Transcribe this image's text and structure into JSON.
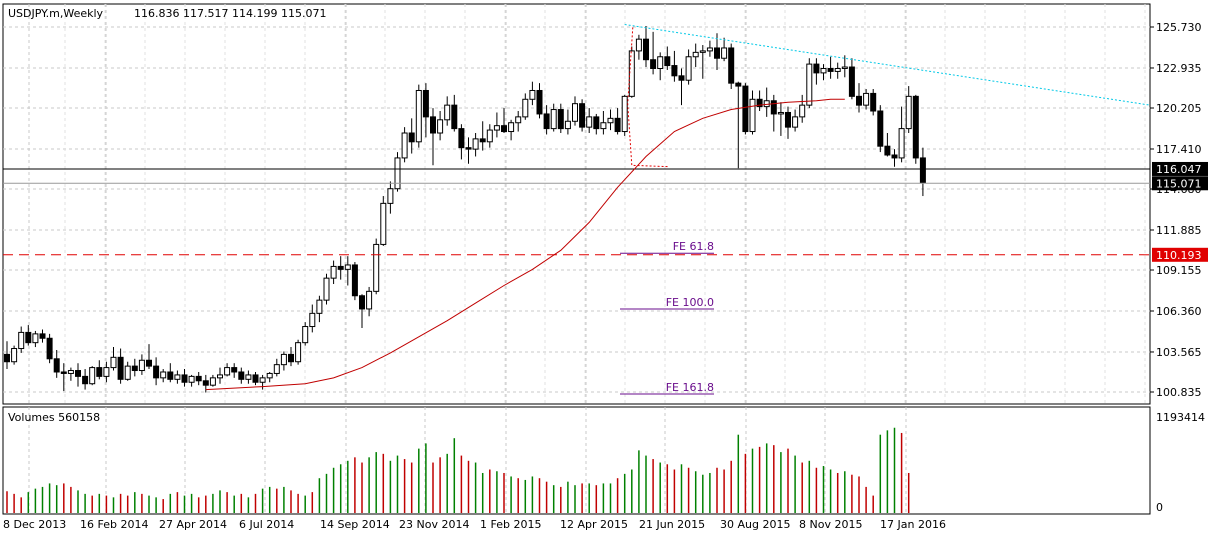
{
  "header": {
    "symbol": "USDJPY.m,Weekly",
    "ohlc": "116.836 117.517 114.199 115.071"
  },
  "volume_panel": {
    "label": "Volumes 560158",
    "axis_max_label": "1193414",
    "axis_zero_label": "0"
  },
  "colors": {
    "background": "#ffffff",
    "grid": "#c8c8c8",
    "candle": "#000000",
    "ma": "#c00000",
    "trendline": "#00c8e6",
    "support_line": "#000000",
    "fe_line": "#6a0d8c",
    "target_line": "#e00000",
    "target_label_bg": "#e00000",
    "volume_up": "#008000",
    "volume_down": "#c00000"
  },
  "chart_data": {
    "type": "candlestick",
    "title": "USDJPY.m,Weekly",
    "y_ticks": [
      "125.730",
      "122.935",
      "120.205",
      "117.410",
      "114.680",
      "111.885",
      "109.155",
      "106.360",
      "103.565",
      "100.835"
    ],
    "y_range": [
      99.9,
      127.0
    ],
    "x_tick_labels": [
      "8 Dec 2013",
      "16 Feb 2014",
      "27 Apr 2014",
      "6 Jul 2014",
      "14 Sep 2014",
      "23 Nov 2014",
      "1 Feb 2015",
      "12 Apr 2015",
      "21 Jun 2015",
      "30 Aug 2015",
      "8 Nov 2015",
      "17 Jan 2016"
    ],
    "current_price_labels": [
      "116.047",
      "115.071"
    ],
    "target_price_label": "110.193",
    "target_price": 110.193,
    "support_price": 116.047,
    "fe_levels": [
      {
        "label": "FE 61.8",
        "price": 110.3
      },
      {
        "label": "FE 100.0",
        "price": 106.5
      },
      {
        "label": "FE 161.8",
        "price": 100.7
      }
    ],
    "candles": [
      [
        103.4,
        104.3,
        102.4,
        102.9
      ],
      [
        102.9,
        104.0,
        102.7,
        103.8
      ],
      [
        103.8,
        105.3,
        103.5,
        104.9
      ],
      [
        104.9,
        105.4,
        104.0,
        104.2
      ],
      [
        104.2,
        105.0,
        103.9,
        104.8
      ],
      [
        104.8,
        105.1,
        104.2,
        104.5
      ],
      [
        104.5,
        104.8,
        102.8,
        103.1
      ],
      [
        103.1,
        103.7,
        101.8,
        102.2
      ],
      [
        102.2,
        102.8,
        100.9,
        102.1
      ],
      [
        102.1,
        102.5,
        101.6,
        102.3
      ],
      [
        102.3,
        102.8,
        101.2,
        101.9
      ],
      [
        101.9,
        102.4,
        101.0,
        101.4
      ],
      [
        101.4,
        102.6,
        101.3,
        102.5
      ],
      [
        102.5,
        103.0,
        101.7,
        101.9
      ],
      [
        101.9,
        102.9,
        101.5,
        102.5
      ],
      [
        102.5,
        103.9,
        102.3,
        103.2
      ],
      [
        103.2,
        103.8,
        101.4,
        101.7
      ],
      [
        101.7,
        102.9,
        101.6,
        102.6
      ],
      [
        102.6,
        103.1,
        101.9,
        102.3
      ],
      [
        102.3,
        103.4,
        102.0,
        103.0
      ],
      [
        103.0,
        104.1,
        102.4,
        102.6
      ],
      [
        102.6,
        103.2,
        101.3,
        101.8
      ],
      [
        101.8,
        102.4,
        101.5,
        102.2
      ],
      [
        102.2,
        102.8,
        101.5,
        101.7
      ],
      [
        101.7,
        102.3,
        101.4,
        102.0
      ],
      [
        102.0,
        102.4,
        101.2,
        101.5
      ],
      [
        101.5,
        102.0,
        101.2,
        101.9
      ],
      [
        101.9,
        102.2,
        101.3,
        101.6
      ],
      [
        101.6,
        102.0,
        100.8,
        101.3
      ],
      [
        101.3,
        102.0,
        101.2,
        101.8
      ],
      [
        101.8,
        102.5,
        101.4,
        102.0
      ],
      [
        102.0,
        102.8,
        101.9,
        102.5
      ],
      [
        102.5,
        102.8,
        101.8,
        102.2
      ],
      [
        102.2,
        102.5,
        101.4,
        101.7
      ],
      [
        101.7,
        102.3,
        101.4,
        102.0
      ],
      [
        102.0,
        102.2,
        101.3,
        101.5
      ],
      [
        101.5,
        102.0,
        101.0,
        101.8
      ],
      [
        101.8,
        102.2,
        101.5,
        102.1
      ],
      [
        102.1,
        103.1,
        101.9,
        102.7
      ],
      [
        102.7,
        103.6,
        102.3,
        103.4
      ],
      [
        103.4,
        103.9,
        102.6,
        102.9
      ],
      [
        102.9,
        104.4,
        102.7,
        104.2
      ],
      [
        104.2,
        105.6,
        104.0,
        105.3
      ],
      [
        105.3,
        106.8,
        104.9,
        106.2
      ],
      [
        106.2,
        107.4,
        105.6,
        107.1
      ],
      [
        107.1,
        108.9,
        106.8,
        108.6
      ],
      [
        108.6,
        109.8,
        108.2,
        109.4
      ],
      [
        109.4,
        110.1,
        108.5,
        109.2
      ],
      [
        109.2,
        110.1,
        108.1,
        109.5
      ],
      [
        109.5,
        109.7,
        107.1,
        107.4
      ],
      [
        107.4,
        107.5,
        105.2,
        106.5
      ],
      [
        106.5,
        108.0,
        106.0,
        107.7
      ],
      [
        107.7,
        111.3,
        107.5,
        110.9
      ],
      [
        110.9,
        114.2,
        110.8,
        113.7
      ],
      [
        113.7,
        115.2,
        113.0,
        114.7
      ],
      [
        114.7,
        117.2,
        114.5,
        116.8
      ],
      [
        116.8,
        118.9,
        116.5,
        118.5
      ],
      [
        118.5,
        119.5,
        117.1,
        117.9
      ],
      [
        117.9,
        121.8,
        117.5,
        121.4
      ],
      [
        121.4,
        121.9,
        118.2,
        119.6
      ],
      [
        119.6,
        120.2,
        116.3,
        118.5
      ],
      [
        118.5,
        120.0,
        118.0,
        119.4
      ],
      [
        119.4,
        121.0,
        119.0,
        120.4
      ],
      [
        120.4,
        121.1,
        118.6,
        118.8
      ],
      [
        118.8,
        119.1,
        116.7,
        117.5
      ],
      [
        117.5,
        118.2,
        116.4,
        117.4
      ],
      [
        117.4,
        118.5,
        116.9,
        118.1
      ],
      [
        118.1,
        119.3,
        117.3,
        117.9
      ],
      [
        117.9,
        119.1,
        117.5,
        118.7
      ],
      [
        118.7,
        119.9,
        118.2,
        119.0
      ],
      [
        119.0,
        120.2,
        118.5,
        118.6
      ],
      [
        118.6,
        119.4,
        118.0,
        119.2
      ],
      [
        119.2,
        120.0,
        118.6,
        119.6
      ],
      [
        119.6,
        121.2,
        119.4,
        120.8
      ],
      [
        120.8,
        122.0,
        120.4,
        121.4
      ],
      [
        121.4,
        121.9,
        119.5,
        119.8
      ],
      [
        119.8,
        120.4,
        118.4,
        118.8
      ],
      [
        118.8,
        120.5,
        118.6,
        120.1
      ],
      [
        120.1,
        120.5,
        118.5,
        118.8
      ],
      [
        118.8,
        120.1,
        118.4,
        119.3
      ],
      [
        119.3,
        121.0,
        119.0,
        120.5
      ],
      [
        120.5,
        120.8,
        118.6,
        118.9
      ],
      [
        118.9,
        120.2,
        118.5,
        119.6
      ],
      [
        119.6,
        119.8,
        118.4,
        118.8
      ],
      [
        118.8,
        120.0,
        118.4,
        119.2
      ],
      [
        119.2,
        120.1,
        118.7,
        119.5
      ],
      [
        119.5,
        120.2,
        118.4,
        118.6
      ],
      [
        118.6,
        121.1,
        118.3,
        121.0
      ],
      [
        121.0,
        124.4,
        120.9,
        124.1
      ],
      [
        124.1,
        125.2,
        123.5,
        124.9
      ],
      [
        124.9,
        125.8,
        123.0,
        123.5
      ],
      [
        123.5,
        125.4,
        122.5,
        122.9
      ],
      [
        122.9,
        124.0,
        122.1,
        123.7
      ],
      [
        123.7,
        124.4,
        122.8,
        123.1
      ],
      [
        123.1,
        124.1,
        122.0,
        122.4
      ],
      [
        122.4,
        122.9,
        120.4,
        122.1
      ],
      [
        122.1,
        124.2,
        121.8,
        123.7
      ],
      [
        123.7,
        124.6,
        123.0,
        124.0
      ],
      [
        124.0,
        124.5,
        122.2,
        124.1
      ],
      [
        124.1,
        124.8,
        123.7,
        124.3
      ],
      [
        124.3,
        125.3,
        122.8,
        123.6
      ],
      [
        123.6,
        125.0,
        123.4,
        124.3
      ],
      [
        124.3,
        124.6,
        121.5,
        121.9
      ],
      [
        121.9,
        122.0,
        116.1,
        121.7
      ],
      [
        121.7,
        121.9,
        118.4,
        118.6
      ],
      [
        118.6,
        121.4,
        118.4,
        120.8
      ],
      [
        120.8,
        121.4,
        120.0,
        120.3
      ],
      [
        120.3,
        121.6,
        119.6,
        120.7
      ],
      [
        120.7,
        121.1,
        118.6,
        119.8
      ],
      [
        119.8,
        120.6,
        118.3,
        119.9
      ],
      [
        119.9,
        120.3,
        118.1,
        118.9
      ],
      [
        118.9,
        120.1,
        118.6,
        119.6
      ],
      [
        119.6,
        121.1,
        119.2,
        120.4
      ],
      [
        120.4,
        123.6,
        120.2,
        123.2
      ],
      [
        123.2,
        123.6,
        121.8,
        122.6
      ],
      [
        122.6,
        123.2,
        122.1,
        122.9
      ],
      [
        122.9,
        123.7,
        122.2,
        122.7
      ],
      [
        122.7,
        123.3,
        122.2,
        122.9
      ],
      [
        122.9,
        123.8,
        122.3,
        123.0
      ],
      [
        123.0,
        123.6,
        120.8,
        121.0
      ],
      [
        121.0,
        121.9,
        119.9,
        120.4
      ],
      [
        120.4,
        121.5,
        120.1,
        121.2
      ],
      [
        121.2,
        121.5,
        119.7,
        120.0
      ],
      [
        120.0,
        120.4,
        117.2,
        117.6
      ],
      [
        117.6,
        118.5,
        116.9,
        117.0
      ],
      [
        117.0,
        117.4,
        116.2,
        116.8
      ],
      [
        116.8,
        120.3,
        116.5,
        118.8
      ],
      [
        118.8,
        121.7,
        118.5,
        121.0
      ],
      [
        121.0,
        121.1,
        116.4,
        116.8
      ],
      [
        116.8,
        117.5,
        114.2,
        115.1
      ]
    ],
    "ma": [
      [
        0,
        101.0
      ],
      [
        8,
        101.2
      ],
      [
        14,
        101.4
      ],
      [
        18,
        101.8
      ],
      [
        22,
        102.5
      ],
      [
        26,
        103.5
      ],
      [
        30,
        104.6
      ],
      [
        34,
        105.7
      ],
      [
        38,
        106.9
      ],
      [
        42,
        108.1
      ],
      [
        46,
        109.2
      ],
      [
        50,
        110.5
      ],
      [
        54,
        112.4
      ],
      [
        58,
        114.8
      ],
      [
        62,
        116.9
      ],
      [
        66,
        118.6
      ],
      [
        70,
        119.5
      ],
      [
        74,
        120.1
      ],
      [
        78,
        120.4
      ],
      [
        82,
        120.6
      ],
      [
        86,
        120.7
      ],
      [
        88,
        120.8
      ],
      [
        90,
        120.8
      ]
    ],
    "ma_start_index": 28,
    "volumes": [
      [
        0.25,
        -1
      ],
      [
        0.22,
        -1
      ],
      [
        0.18,
        -1
      ],
      [
        0.24,
        1
      ],
      [
        0.28,
        1
      ],
      [
        0.3,
        1
      ],
      [
        0.34,
        1
      ],
      [
        0.32,
        1
      ],
      [
        0.34,
        -1
      ],
      [
        0.3,
        -1
      ],
      [
        0.26,
        1
      ],
      [
        0.22,
        1
      ],
      [
        0.2,
        -1
      ],
      [
        0.22,
        1
      ],
      [
        0.2,
        -1
      ],
      [
        0.18,
        1
      ],
      [
        0.22,
        -1
      ],
      [
        0.2,
        -1
      ],
      [
        0.24,
        1
      ],
      [
        0.22,
        -1
      ],
      [
        0.2,
        1
      ],
      [
        0.18,
        1
      ],
      [
        0.16,
        -1
      ],
      [
        0.22,
        1
      ],
      [
        0.24,
        -1
      ],
      [
        0.2,
        1
      ],
      [
        0.22,
        1
      ],
      [
        0.18,
        -1
      ],
      [
        0.2,
        -1
      ],
      [
        0.22,
        1
      ],
      [
        0.26,
        1
      ],
      [
        0.24,
        -1
      ],
      [
        0.2,
        1
      ],
      [
        0.22,
        -1
      ],
      [
        0.18,
        1
      ],
      [
        0.22,
        -1
      ],
      [
        0.28,
        1
      ],
      [
        0.3,
        1
      ],
      [
        0.28,
        -1
      ],
      [
        0.3,
        1
      ],
      [
        0.26,
        -1
      ],
      [
        0.22,
        -1
      ],
      [
        0.2,
        1
      ],
      [
        0.24,
        -1
      ],
      [
        0.4,
        1
      ],
      [
        0.45,
        1
      ],
      [
        0.52,
        1
      ],
      [
        0.56,
        1
      ],
      [
        0.6,
        1
      ],
      [
        0.64,
        -1
      ],
      [
        0.58,
        -1
      ],
      [
        0.64,
        1
      ],
      [
        0.7,
        1
      ],
      [
        0.68,
        -1
      ],
      [
        0.6,
        1
      ],
      [
        0.66,
        1
      ],
      [
        0.62,
        -1
      ],
      [
        0.58,
        -1
      ],
      [
        0.74,
        1
      ],
      [
        0.8,
        1
      ],
      [
        0.58,
        -1
      ],
      [
        0.64,
        -1
      ],
      [
        0.68,
        1
      ],
      [
        0.86,
        1
      ],
      [
        0.66,
        -1
      ],
      [
        0.6,
        -1
      ],
      [
        0.58,
        1
      ],
      [
        0.46,
        1
      ],
      [
        0.5,
        -1
      ],
      [
        0.48,
        1
      ],
      [
        0.46,
        -1
      ],
      [
        0.42,
        1
      ],
      [
        0.4,
        -1
      ],
      [
        0.38,
        1
      ],
      [
        0.42,
        1
      ],
      [
        0.4,
        -1
      ],
      [
        0.36,
        -1
      ],
      [
        0.32,
        1
      ],
      [
        0.3,
        -1
      ],
      [
        0.36,
        1
      ],
      [
        0.32,
        1
      ],
      [
        0.34,
        -1
      ],
      [
        0.34,
        1
      ],
      [
        0.32,
        -1
      ],
      [
        0.34,
        1
      ],
      [
        0.34,
        1
      ],
      [
        0.4,
        -1
      ],
      [
        0.45,
        1
      ],
      [
        0.5,
        1
      ],
      [
        0.72,
        1
      ],
      [
        0.66,
        1
      ],
      [
        0.62,
        -1
      ],
      [
        0.58,
        1
      ],
      [
        0.56,
        -1
      ],
      [
        0.5,
        -1
      ],
      [
        0.56,
        1
      ],
      [
        0.52,
        -1
      ],
      [
        0.48,
        1
      ],
      [
        0.44,
        1
      ],
      [
        0.46,
        1
      ],
      [
        0.52,
        -1
      ],
      [
        0.5,
        -1
      ],
      [
        0.6,
        -1
      ],
      [
        0.9,
        1
      ],
      [
        0.68,
        -1
      ],
      [
        0.74,
        1
      ],
      [
        0.76,
        -1
      ],
      [
        0.8,
        1
      ],
      [
        0.78,
        -1
      ],
      [
        0.7,
        1
      ],
      [
        0.74,
        -1
      ],
      [
        0.66,
        1
      ],
      [
        0.58,
        -1
      ],
      [
        0.6,
        1
      ],
      [
        0.52,
        -1
      ],
      [
        0.54,
        1
      ],
      [
        0.5,
        1
      ],
      [
        0.46,
        -1
      ],
      [
        0.48,
        1
      ],
      [
        0.44,
        -1
      ],
      [
        0.42,
        -1
      ],
      [
        0.3,
        -1
      ],
      [
        0.2,
        -1
      ],
      [
        0.9,
        1
      ],
      [
        0.95,
        1
      ],
      [
        0.98,
        1
      ],
      [
        0.92,
        -1
      ],
      [
        0.46,
        -1
      ]
    ]
  }
}
